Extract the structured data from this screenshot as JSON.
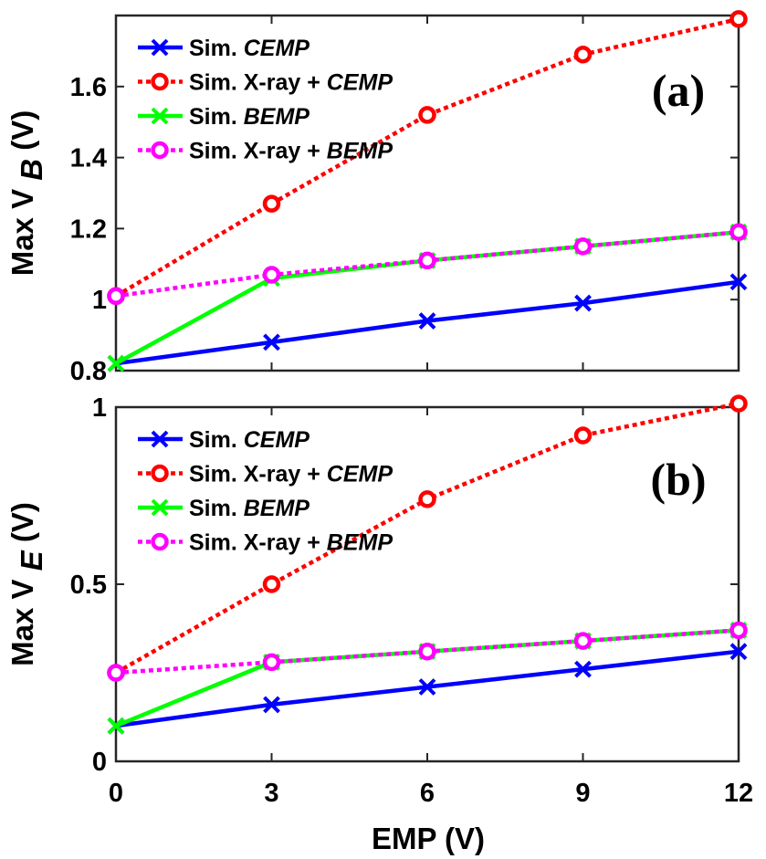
{
  "chart_data": [
    {
      "type": "line",
      "panel_label": "(a)",
      "xlabel": "",
      "ylabel_main": "Max V",
      "ylabel_sub": "B",
      "ylabel_suffix": " (V)",
      "x": [
        0,
        3,
        6,
        9,
        12
      ],
      "xticks": [
        "0",
        "3",
        "6",
        "9",
        "12"
      ],
      "ylim": [
        0.8,
        1.8
      ],
      "yticks": [
        {
          "value": 0.8,
          "label": "0.8"
        },
        {
          "value": 1.0,
          "label": "1"
        },
        {
          "value": 1.2,
          "label": "1.2"
        },
        {
          "value": 1.4,
          "label": "1.4"
        },
        {
          "value": 1.6,
          "label": "1.6"
        }
      ],
      "legend_position": "top-left",
      "series": [
        {
          "name_prefix": "Sim. ",
          "name_italic": "CEMP",
          "color": "#0000ff",
          "style": "solid",
          "marker": "x",
          "values": [
            0.82,
            0.88,
            0.94,
            0.99,
            1.05
          ]
        },
        {
          "name_prefix": "Sim. X-ray + ",
          "name_italic": "CEMP",
          "color": "#ff0000",
          "style": "dotted",
          "marker": "o",
          "values": [
            1.01,
            1.27,
            1.52,
            1.69,
            1.79
          ]
        },
        {
          "name_prefix": "Sim. ",
          "name_italic": "BEMP",
          "color": "#00ff00",
          "style": "solid",
          "marker": "x",
          "values": [
            0.82,
            1.06,
            1.11,
            1.15,
            1.19
          ]
        },
        {
          "name_prefix": "Sim. X-ray + ",
          "name_italic": "BEMP",
          "color": "#ff00ff",
          "style": "dotted",
          "marker": "o",
          "values": [
            1.01,
            1.07,
            1.11,
            1.15,
            1.19
          ]
        }
      ]
    },
    {
      "type": "line",
      "panel_label": "(b)",
      "xlabel": "EMP (V)",
      "ylabel_main": "Max V",
      "ylabel_sub": "E",
      "ylabel_suffix": " (V)",
      "x": [
        0,
        3,
        6,
        9,
        12
      ],
      "xticks": [
        "0",
        "3",
        "6",
        "9",
        "12"
      ],
      "ylim": [
        0,
        1.0
      ],
      "yticks": [
        {
          "value": 0,
          "label": "0"
        },
        {
          "value": 0.5,
          "label": "0.5"
        },
        {
          "value": 1.0,
          "label": "1"
        }
      ],
      "legend_position": "top-left",
      "series": [
        {
          "name_prefix": "Sim. ",
          "name_italic": "CEMP",
          "color": "#0000ff",
          "style": "solid",
          "marker": "x",
          "values": [
            0.1,
            0.16,
            0.21,
            0.26,
            0.31
          ]
        },
        {
          "name_prefix": "Sim. X-ray + ",
          "name_italic": "CEMP",
          "color": "#ff0000",
          "style": "dotted",
          "marker": "o",
          "values": [
            0.25,
            0.5,
            0.74,
            0.92,
            1.01
          ]
        },
        {
          "name_prefix": "Sim. ",
          "name_italic": "BEMP",
          "color": "#00ff00",
          "style": "solid",
          "marker": "x",
          "values": [
            0.1,
            0.28,
            0.31,
            0.34,
            0.37
          ]
        },
        {
          "name_prefix": "Sim. X-ray + ",
          "name_italic": "BEMP",
          "color": "#ff00ff",
          "style": "dotted",
          "marker": "o",
          "values": [
            0.25,
            0.28,
            0.31,
            0.34,
            0.37
          ]
        }
      ]
    }
  ]
}
